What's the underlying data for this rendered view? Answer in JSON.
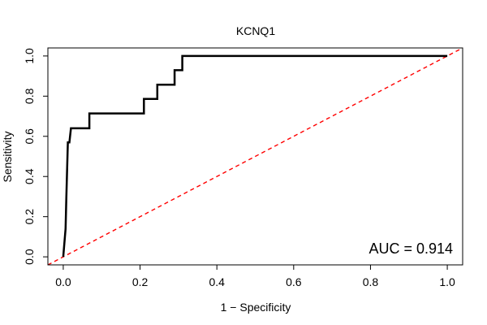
{
  "chart_data": {
    "type": "line",
    "title": "KCNQ1",
    "xlabel": "1 − Specificity",
    "ylabel": "Sensitivity",
    "xlim": [
      -0.04,
      1.04
    ],
    "ylim": [
      -0.04,
      1.04
    ],
    "xticks": [
      0.0,
      0.2,
      0.4,
      0.6,
      0.8,
      1.0
    ],
    "yticks": [
      0.0,
      0.2,
      0.4,
      0.6,
      0.8,
      1.0
    ],
    "xtick_labels": [
      "0.0",
      "0.2",
      "0.4",
      "0.6",
      "0.8",
      "1.0"
    ],
    "ytick_labels": [
      "0.0",
      "0.2",
      "0.4",
      "0.6",
      "0.8",
      "1.0"
    ],
    "annotation": "AUC = 0.914",
    "series": [
      {
        "name": "ROC curve",
        "color": "#000000",
        "style": "solid",
        "points": [
          [
            0.0,
            0.0
          ],
          [
            0.006,
            0.14
          ],
          [
            0.008,
            0.29
          ],
          [
            0.012,
            0.57
          ],
          [
            0.016,
            0.57
          ],
          [
            0.02,
            0.64
          ],
          [
            0.068,
            0.64
          ],
          [
            0.068,
            0.714
          ],
          [
            0.21,
            0.714
          ],
          [
            0.21,
            0.786
          ],
          [
            0.245,
            0.786
          ],
          [
            0.245,
            0.857
          ],
          [
            0.29,
            0.857
          ],
          [
            0.29,
            0.929
          ],
          [
            0.31,
            0.929
          ],
          [
            0.31,
            1.0
          ],
          [
            1.0,
            1.0
          ]
        ]
      },
      {
        "name": "reference",
        "color": "#ff0000",
        "style": "dashed",
        "points": [
          [
            -0.04,
            -0.04
          ],
          [
            1.04,
            1.04
          ]
        ]
      }
    ]
  }
}
